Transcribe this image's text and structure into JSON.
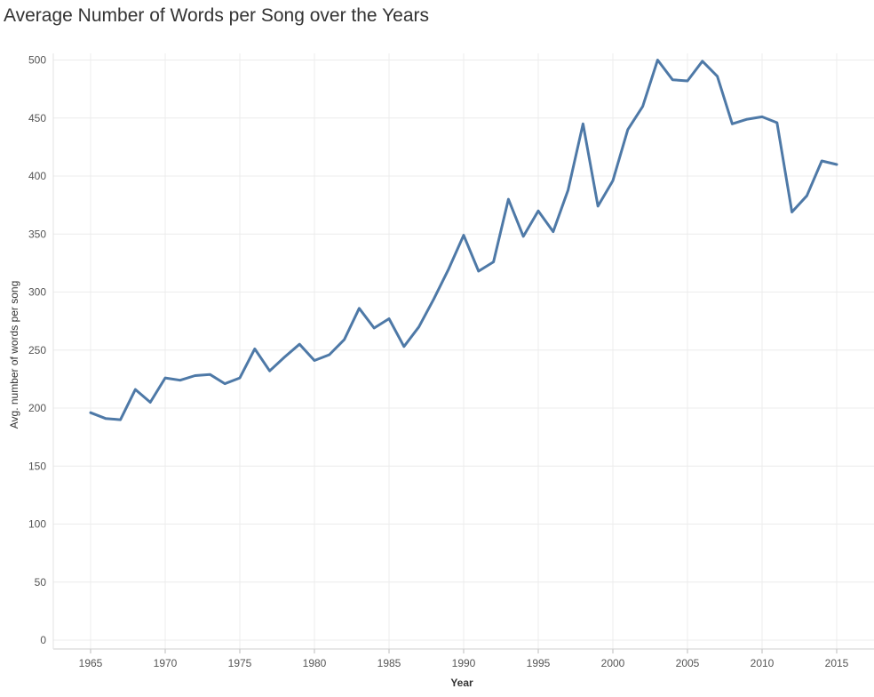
{
  "chart_data": {
    "type": "line",
    "title": "Average Number of Words per Song over the Years",
    "xlabel": "Year",
    "ylabel": "Avg. number of words per song",
    "xlim": [
      1962,
      2018
    ],
    "ylim": [
      0,
      510
    ],
    "x_ticks": [
      1965,
      1970,
      1975,
      1980,
      1985,
      1990,
      1995,
      2000,
      2005,
      2010,
      2015
    ],
    "y_ticks": [
      0,
      50,
      100,
      150,
      200,
      250,
      300,
      350,
      400,
      450,
      500
    ],
    "grid": true,
    "series": [
      {
        "color": "#4e79a7",
        "x": [
          1965,
          1966,
          1967,
          1968,
          1969,
          1970,
          1971,
          1972,
          1973,
          1974,
          1975,
          1976,
          1977,
          1978,
          1979,
          1980,
          1981,
          1982,
          1983,
          1984,
          1985,
          1986,
          1987,
          1988,
          1989,
          1990,
          1991,
          1992,
          1993,
          1994,
          1995,
          1996,
          1997,
          1998,
          1999,
          2000,
          2001,
          2002,
          2003,
          2004,
          2005,
          2006,
          2007,
          2008,
          2009,
          2010,
          2011,
          2012,
          2013,
          2014,
          2015
        ],
        "values": [
          196,
          191,
          190,
          216,
          205,
          226,
          224,
          228,
          229,
          221,
          226,
          251,
          232,
          244,
          255,
          241,
          246,
          259,
          286,
          269,
          277,
          253,
          270,
          294,
          320,
          349,
          318,
          326,
          380,
          348,
          370,
          352,
          388,
          445,
          374,
          396,
          440,
          460,
          500,
          483,
          482,
          499,
          486,
          445,
          449,
          451,
          446,
          369,
          383,
          413,
          410
        ]
      }
    ]
  }
}
